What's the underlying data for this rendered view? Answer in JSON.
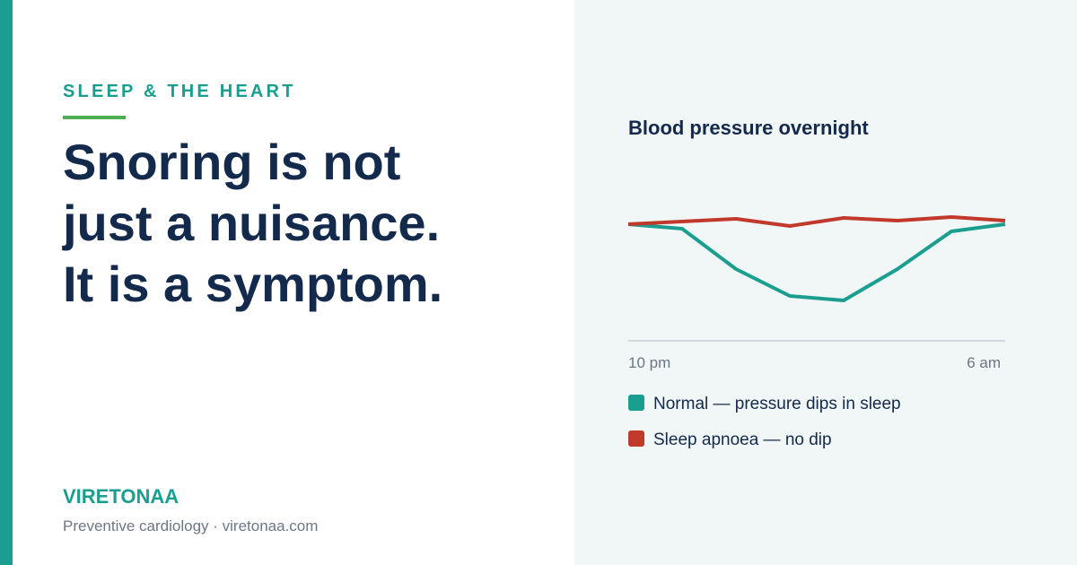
{
  "eyebrow": "SLEEP & THE HEART",
  "headline": [
    "Snoring is not",
    "just a nuisance.",
    "It is a symptom."
  ],
  "brand": "VIRETONAA",
  "tagline": "Preventive cardiology · viretonaa.com",
  "chart_data": {
    "type": "line",
    "title": "Blood pressure overnight",
    "categories": [
      "10 pm",
      null,
      null,
      null,
      null,
      null,
      null,
      "6 am"
    ],
    "series": [
      {
        "name": "Normal — pressure dips in sleep",
        "color": "#1a9e8f",
        "values": [
          130,
          125,
          80,
          50,
          45,
          80,
          122,
          130
        ]
      },
      {
        "name": "Sleep apnoea — no dip",
        "color": "#c0392b",
        "values": [
          130,
          133,
          136,
          128,
          137,
          134,
          138,
          134
        ]
      }
    ],
    "ylim": [
      0,
      180
    ]
  }
}
